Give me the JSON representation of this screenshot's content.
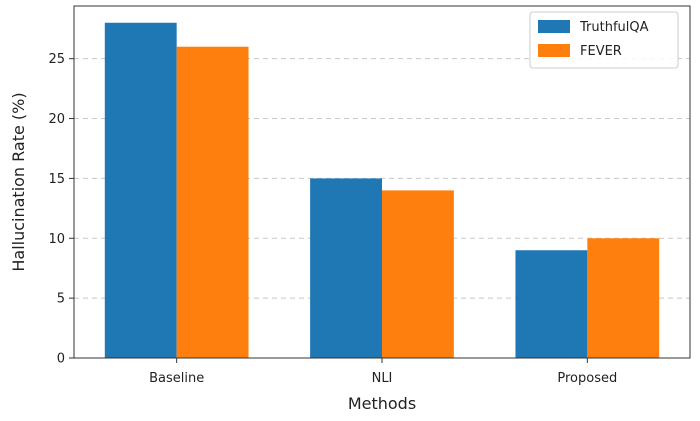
{
  "chart_data": {
    "type": "bar",
    "title": "",
    "xlabel": "Methods",
    "ylabel": "Hallucination Rate (%)",
    "categories": [
      "Baseline",
      "NLI",
      "Proposed"
    ],
    "series": [
      {
        "name": "TruthfulQA",
        "color": "#1f77b4",
        "values": [
          28,
          15,
          9
        ]
      },
      {
        "name": "FEVER",
        "color": "#ff7f0e",
        "values": [
          26,
          14,
          10
        ]
      }
    ],
    "yticks": [
      0,
      5,
      10,
      15,
      20,
      25
    ],
    "ylim": [
      0,
      29.4
    ],
    "grid": "y-dashed",
    "legend_position": "top-right"
  }
}
